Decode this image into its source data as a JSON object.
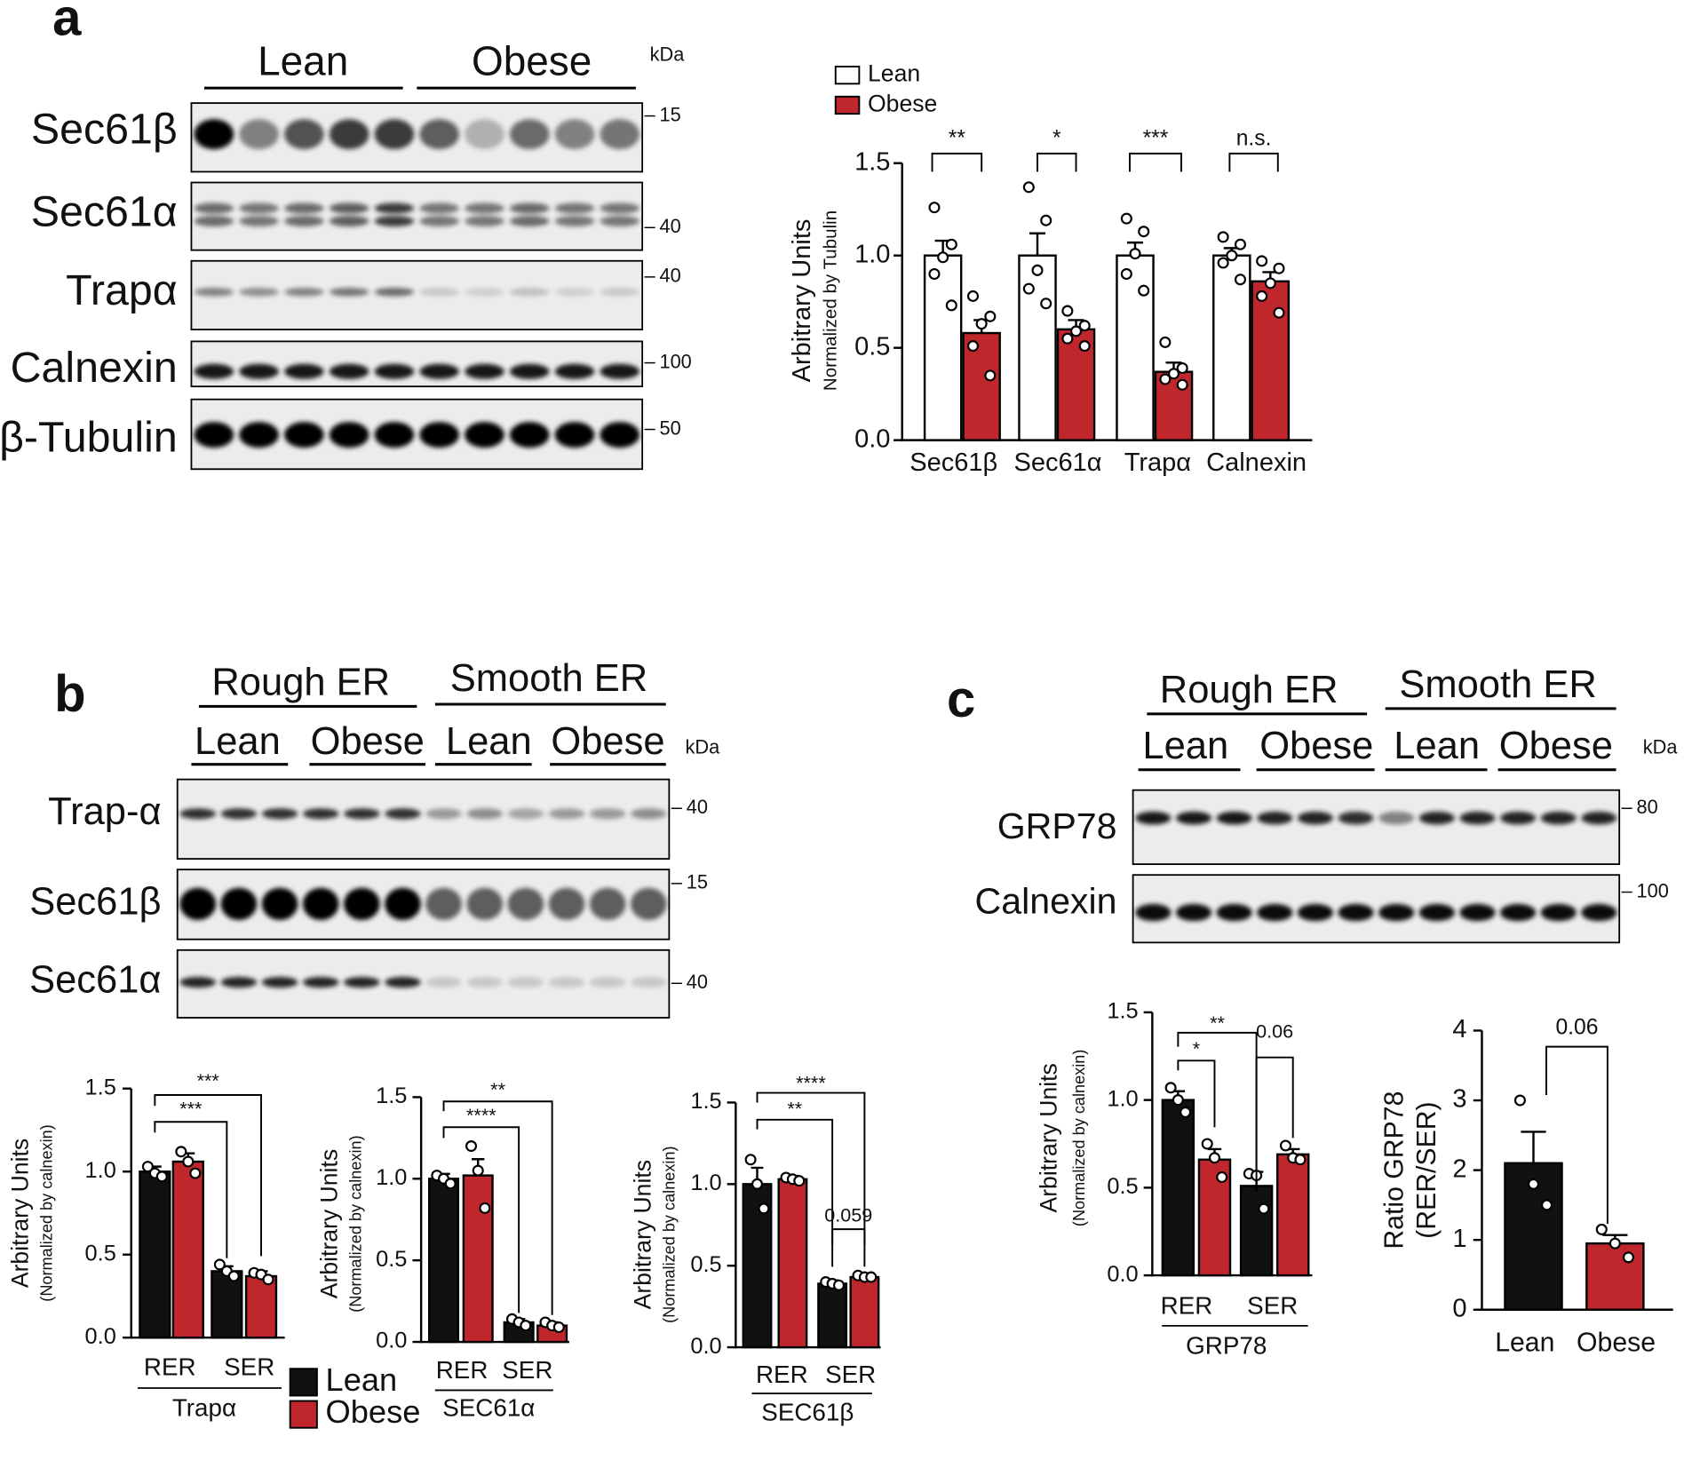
{
  "blots": [
    {
      "letter": "a",
      "groups": [
        "Lean",
        "Obese"
      ],
      "kda_header": "kDa",
      "rows": [
        {
          "label": "Sec61β",
          "kda": "15"
        },
        {
          "label": "Sec61α",
          "kda": "40"
        },
        {
          "label": "Trapα",
          "kda": "40"
        },
        {
          "label": "Calnexin",
          "kda": "100"
        },
        {
          "label": "β-Tubulin",
          "kda": "50"
        }
      ]
    },
    {
      "letter": "b",
      "groups": [
        "Rough ER",
        "Smooth ER"
      ],
      "lanes": [
        "Lean",
        "Obese",
        "Lean",
        "Obese"
      ],
      "kda_header": "kDa",
      "rows": [
        {
          "label": "Trap-α",
          "kda": "40"
        },
        {
          "label": "Sec61β",
          "kda": "15"
        },
        {
          "label": "Sec61α",
          "kda": "40"
        }
      ]
    },
    {
      "letter": "c",
      "groups": [
        "Rough ER",
        "Smooth ER"
      ],
      "lanes": [
        "Lean",
        "Obese",
        "Lean",
        "Obese"
      ],
      "kda_header": "kDa",
      "rows": [
        {
          "label": "GRP78",
          "kda": "80"
        },
        {
          "label": "Calnexin",
          "kda": "100"
        }
      ]
    }
  ],
  "chart_data": [
    {
      "type": "bar",
      "ylabel": "Arbitrary Units",
      "ysublabel": "Normalized by Tubulin",
      "categories": [
        "Sec61β",
        "Sec61α",
        "Trapα",
        "Calnexin"
      ],
      "ylim": [
        0,
        1.5
      ],
      "yticks": [
        {
          "value": 0,
          "label": "0.0"
        },
        0.5,
        {
          "value": 1,
          "label": "1.0"
        },
        1.5
      ],
      "legend": "top-left",
      "series": [
        {
          "name": "Lean",
          "color": "#ffffff",
          "values": [
            1,
            1,
            1,
            1
          ],
          "errors": [
            0.08,
            0.12,
            0.07,
            0.04
          ],
          "points": [
            [
              1.26,
              1.06,
              0.99,
              0.9,
              0.73
            ],
            [
              1.37,
              1.19,
              0.92,
              0.82,
              0.74
            ],
            [
              1.2,
              1.13,
              1.01,
              0.9,
              0.81
            ],
            [
              1.1,
              1.06,
              1,
              0.96,
              0.87
            ]
          ]
        },
        {
          "name": "Obese",
          "color": "#c0272d",
          "values": [
            0.58,
            0.6,
            0.37,
            0.86
          ],
          "errors": [
            0.07,
            0.05,
            0.05,
            0.05
          ],
          "points": [
            [
              0.78,
              0.67,
              0.63,
              0.51,
              0.35
            ],
            [
              0.7,
              0.62,
              0.59,
              0.55,
              0.51
            ],
            [
              0.53,
              0.39,
              0.36,
              0.33,
              0.3
            ],
            [
              0.97,
              0.93,
              0.85,
              0.78,
              0.69
            ]
          ]
        }
      ],
      "annotations": [
        "**",
        "*",
        "***",
        "n.s."
      ]
    },
    {
      "type": "bar",
      "ylabel": "Arbitrary Units",
      "ysublabel": "(Normalized by calnexin)",
      "categories": [
        "RER",
        "SER"
      ],
      "group_label": "Trapα",
      "ylim": [
        0,
        1.5
      ],
      "yticks": [
        {
          "value": 0,
          "label": "0.0"
        },
        0.5,
        {
          "value": 1,
          "label": "1.0"
        },
        1.5
      ],
      "series": [
        {
          "name": "Lean",
          "color": "#111111",
          "values": [
            1,
            0.4
          ],
          "errors": [
            0.03,
            0.03
          ],
          "points": [
            [
              1.03,
              0.99,
              0.97
            ],
            [
              0.44,
              0.4,
              0.37
            ]
          ]
        },
        {
          "name": "Obese",
          "color": "#c0272d",
          "values": [
            1.06,
            0.37
          ],
          "errors": [
            0.05,
            0.03
          ],
          "points": [
            [
              1.12,
              1.06,
              0.99
            ],
            [
              0.39,
              0.38,
              0.35
            ]
          ]
        }
      ],
      "annotations": [
        "***",
        "***"
      ]
    },
    {
      "type": "bar",
      "ylabel": "Arbitrary Units",
      "ysublabel": "(Normalized by calnexin)",
      "categories": [
        "RER",
        "SER"
      ],
      "group_label": "SEC61α",
      "ylim": [
        0,
        1.5
      ],
      "yticks": [
        {
          "value": 0,
          "label": "0.0"
        },
        0.5,
        {
          "value": 1,
          "label": "1.0"
        },
        1.5
      ],
      "legend": "bottom-left",
      "series": [
        {
          "name": "Lean",
          "color": "#111111",
          "values": [
            1,
            0.12
          ],
          "errors": [
            0.03,
            0.02
          ],
          "points": [
            [
              1.02,
              1,
              0.97
            ],
            [
              0.14,
              0.12,
              0.1
            ]
          ]
        },
        {
          "name": "Obese",
          "color": "#c0272d",
          "values": [
            1.02,
            0.1
          ],
          "errors": [
            0.1,
            0.02
          ],
          "points": [
            [
              1.2,
              1.05,
              0.82
            ],
            [
              0.12,
              0.1,
              0.09
            ]
          ]
        }
      ],
      "annotations": [
        "**",
        "****"
      ]
    },
    {
      "type": "bar",
      "ylabel": "Arbitrary Units",
      "ysublabel": "(Normalized by calnexin)",
      "categories": [
        "RER",
        "SER"
      ],
      "group_label": "SEC61β",
      "ylim": [
        0,
        1.5
      ],
      "yticks": [
        {
          "value": 0,
          "label": "0.0"
        },
        0.5,
        {
          "value": 1,
          "label": "1.0"
        },
        1.5
      ],
      "series": [
        {
          "name": "Lean",
          "color": "#111111",
          "values": [
            1,
            0.39
          ],
          "errors": [
            0.1,
            0.02
          ],
          "points": [
            [
              1.15,
              1,
              0.85
            ],
            [
              0.4,
              0.39,
              0.38
            ]
          ]
        },
        {
          "name": "Obese",
          "color": "#c0272d",
          "values": [
            1.03,
            0.43
          ],
          "errors": [
            0.02,
            0.01
          ],
          "points": [
            [
              1.04,
              1.03,
              1.02
            ],
            [
              0.44,
              0.43,
              0.43
            ]
          ]
        }
      ],
      "annotations": [
        "****",
        "**",
        "0.059"
      ]
    },
    {
      "type": "bar",
      "ylabel": "Arbitrary Units",
      "ysublabel": "(Normalized by calnexin)",
      "categories": [
        "RER",
        "SER"
      ],
      "group_label": "GRP78",
      "ylim": [
        0,
        1.5
      ],
      "yticks": [
        {
          "value": 0,
          "label": "0.0"
        },
        0.5,
        {
          "value": 1,
          "label": "1.0"
        },
        1.5
      ],
      "series": [
        {
          "name": "Lean",
          "color": "#111111",
          "values": [
            1,
            0.51
          ],
          "errors": [
            0.05,
            0.08
          ],
          "points": [
            [
              1.07,
              1,
              0.93
            ],
            [
              0.58,
              0.57,
              0.38
            ]
          ]
        },
        {
          "name": "Obese",
          "color": "#c0272d",
          "values": [
            0.66,
            0.69
          ],
          "errors": [
            0.06,
            0.03
          ],
          "points": [
            [
              0.75,
              0.67,
              0.56
            ],
            [
              0.74,
              0.67,
              0.66
            ]
          ]
        }
      ],
      "annotations": [
        "**",
        "*",
        "0.06"
      ]
    },
    {
      "type": "bar",
      "ylabel": "Ratio GRP78",
      "ysublabel": "(RER/SER)",
      "categories": [
        "Lean",
        "Obese"
      ],
      "ylim": [
        0,
        4
      ],
      "yticks": [
        0,
        1,
        2,
        3,
        4
      ],
      "series": [
        {
          "colors": [
            "#111111",
            "#c0272d"
          ],
          "values": [
            2.1,
            0.95
          ],
          "errors": [
            0.45,
            0.12
          ],
          "points": [
            [
              3,
              1.8,
              1.5
            ],
            [
              1.15,
              0.95,
              0.75
            ]
          ]
        }
      ],
      "annotations": [
        "0.06"
      ]
    }
  ]
}
